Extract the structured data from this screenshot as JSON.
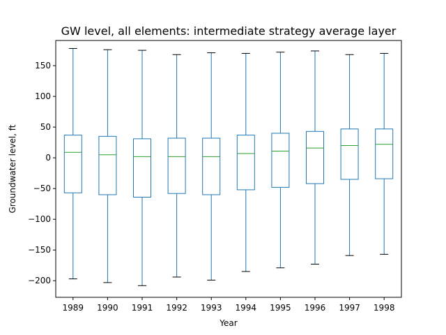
{
  "chart_data": {
    "type": "box",
    "title": "GW level, all elements: intermediate strategy average layer",
    "xlabel": "Year",
    "ylabel": "Groundwater level, ft",
    "categories": [
      "1989",
      "1990",
      "1991",
      "1992",
      "1993",
      "1994",
      "1995",
      "1996",
      "1997",
      "1998"
    ],
    "ylim": [
      -227,
      191
    ],
    "yticks": [
      -200,
      -150,
      -100,
      -50,
      0,
      50,
      100,
      150
    ],
    "boxes": [
      {
        "category": "1989",
        "whisker_low": -197,
        "q1": -57,
        "median": 9,
        "q3": 37,
        "whisker_high": 178
      },
      {
        "category": "1990",
        "whisker_low": -203,
        "q1": -60,
        "median": 5,
        "q3": 35,
        "whisker_high": 176
      },
      {
        "category": "1991",
        "whisker_low": -208,
        "q1": -64,
        "median": 2,
        "q3": 31,
        "whisker_high": 175
      },
      {
        "category": "1992",
        "whisker_low": -194,
        "q1": -58,
        "median": 2,
        "q3": 32,
        "whisker_high": 168
      },
      {
        "category": "1993",
        "whisker_low": -199,
        "q1": -60,
        "median": 2,
        "q3": 32,
        "whisker_high": 171
      },
      {
        "category": "1994",
        "whisker_low": -185,
        "q1": -52,
        "median": 7,
        "q3": 37,
        "whisker_high": 170
      },
      {
        "category": "1995",
        "whisker_low": -179,
        "q1": -48,
        "median": 11,
        "q3": 40,
        "whisker_high": 172
      },
      {
        "category": "1996",
        "whisker_low": -173,
        "q1": -42,
        "median": 16,
        "q3": 43,
        "whisker_high": 174
      },
      {
        "category": "1997",
        "whisker_low": -159,
        "q1": -35,
        "median": 20,
        "q3": 47,
        "whisker_high": 168
      },
      {
        "category": "1998",
        "whisker_low": -157,
        "q1": -34,
        "median": 22,
        "q3": 47,
        "whisker_high": 170
      }
    ],
    "grid": false,
    "colors": {
      "box": "#1f77b4",
      "median": "#2ca02c",
      "cap": "#000000"
    }
  }
}
